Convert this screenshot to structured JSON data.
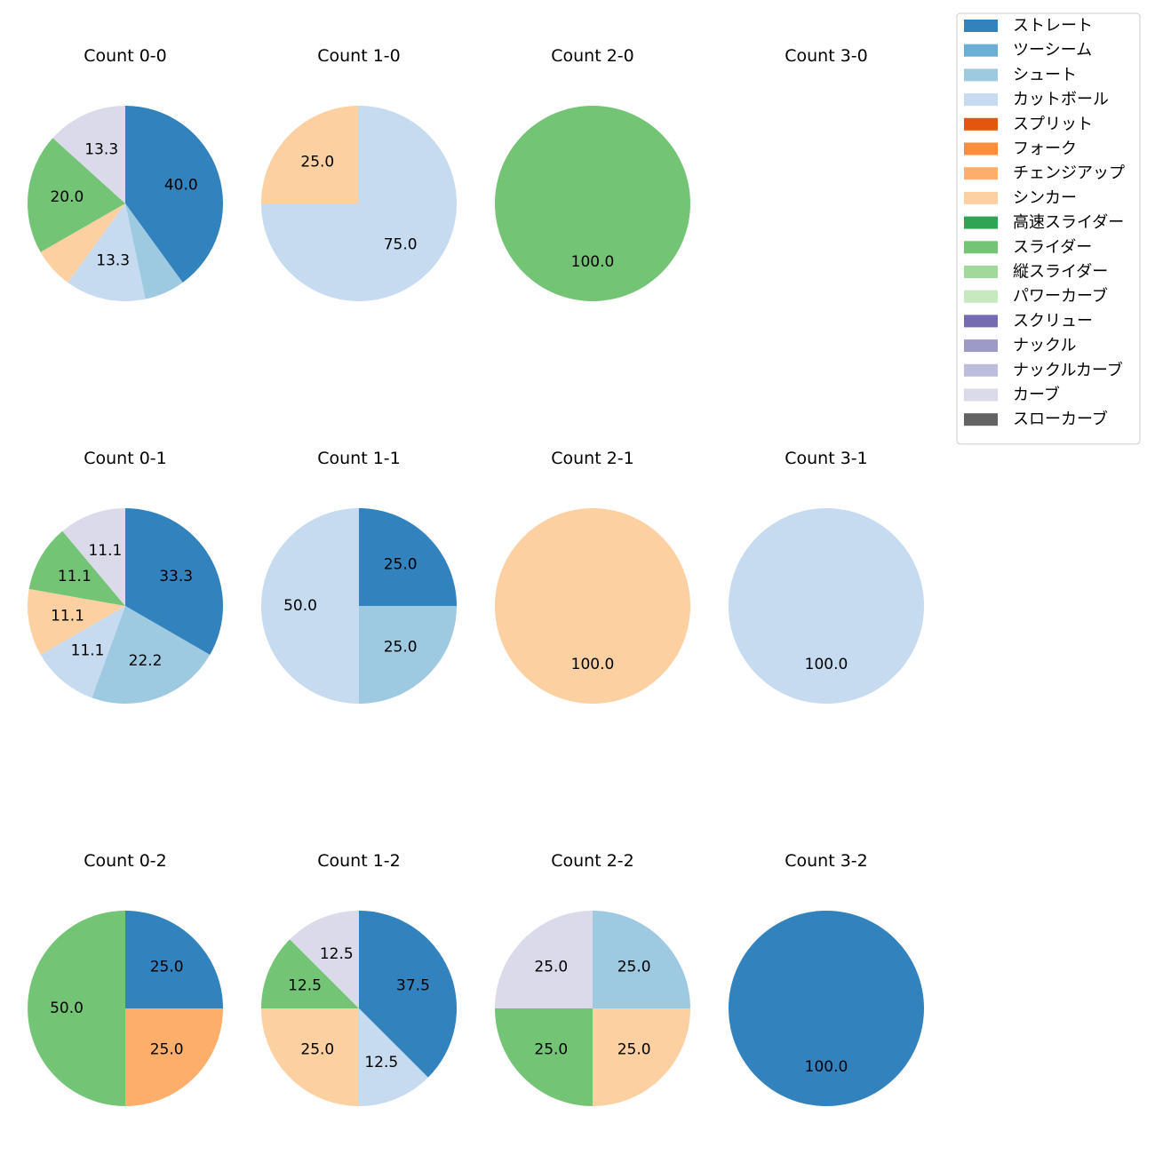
{
  "legend": {
    "items": [
      {
        "label": "ストレート",
        "color": "#3182bd"
      },
      {
        "label": "ツーシーム",
        "color": "#6baed6"
      },
      {
        "label": "シュート",
        "color": "#9ecae1"
      },
      {
        "label": "カットボール",
        "color": "#c6dbef"
      },
      {
        "label": "スプリット",
        "color": "#e6550d"
      },
      {
        "label": "フォーク",
        "color": "#fd8d3c"
      },
      {
        "label": "チェンジアップ",
        "color": "#fdae6b"
      },
      {
        "label": "シンカー",
        "color": "#fdd0a2"
      },
      {
        "label": "高速スライダー",
        "color": "#31a354"
      },
      {
        "label": "スライダー",
        "color": "#74c476"
      },
      {
        "label": "縦スライダー",
        "color": "#a1d99b"
      },
      {
        "label": "パワーカーブ",
        "color": "#c7e9c0"
      },
      {
        "label": "スクリュー",
        "color": "#756bb1"
      },
      {
        "label": "ナックル",
        "color": "#9e9ac8"
      },
      {
        "label": "ナックルカーブ",
        "color": "#bcbddc"
      },
      {
        "label": "カーブ",
        "color": "#dadaeb"
      },
      {
        "label": "スローカーブ",
        "color": "#636363"
      }
    ]
  },
  "chart_data": [
    {
      "type": "pie",
      "title": "Count 0-0",
      "slices": [
        {
          "category": "ストレート",
          "value": 40.0,
          "label": "40.0"
        },
        {
          "category": "シュート",
          "value": 6.7,
          "label": ""
        },
        {
          "category": "カットボール",
          "value": 13.3,
          "label": "13.3"
        },
        {
          "category": "シンカー",
          "value": 6.7,
          "label": ""
        },
        {
          "category": "スライダー",
          "value": 20.0,
          "label": "20.0"
        },
        {
          "category": "カーブ",
          "value": 13.3,
          "label": "13.3"
        }
      ]
    },
    {
      "type": "pie",
      "title": "Count 1-0",
      "slices": [
        {
          "category": "カットボール",
          "value": 75.0,
          "label": "75.0"
        },
        {
          "category": "シンカー",
          "value": 25.0,
          "label": "25.0"
        }
      ]
    },
    {
      "type": "pie",
      "title": "Count 2-0",
      "slices": [
        {
          "category": "スライダー",
          "value": 100.0,
          "label": "100.0"
        }
      ]
    },
    {
      "type": "pie",
      "title": "Count 3-0",
      "slices": []
    },
    {
      "type": "pie",
      "title": "Count 0-1",
      "slices": [
        {
          "category": "ストレート",
          "value": 33.3,
          "label": "33.3"
        },
        {
          "category": "シュート",
          "value": 22.2,
          "label": "22.2"
        },
        {
          "category": "カットボール",
          "value": 11.1,
          "label": "11.1"
        },
        {
          "category": "シンカー",
          "value": 11.1,
          "label": "11.1"
        },
        {
          "category": "スライダー",
          "value": 11.1,
          "label": "11.1"
        },
        {
          "category": "カーブ",
          "value": 11.1,
          "label": "11.1"
        }
      ]
    },
    {
      "type": "pie",
      "title": "Count 1-1",
      "slices": [
        {
          "category": "ストレート",
          "value": 25.0,
          "label": "25.0"
        },
        {
          "category": "シュート",
          "value": 25.0,
          "label": "25.0"
        },
        {
          "category": "カットボール",
          "value": 50.0,
          "label": "50.0"
        }
      ]
    },
    {
      "type": "pie",
      "title": "Count 2-1",
      "slices": [
        {
          "category": "シンカー",
          "value": 100.0,
          "label": "100.0"
        }
      ]
    },
    {
      "type": "pie",
      "title": "Count 3-1",
      "slices": [
        {
          "category": "カットボール",
          "value": 100.0,
          "label": "100.0"
        }
      ]
    },
    {
      "type": "pie",
      "title": "Count 0-2",
      "slices": [
        {
          "category": "ストレート",
          "value": 25.0,
          "label": "25.0"
        },
        {
          "category": "チェンジアップ",
          "value": 25.0,
          "label": "25.0"
        },
        {
          "category": "スライダー",
          "value": 50.0,
          "label": "50.0"
        }
      ]
    },
    {
      "type": "pie",
      "title": "Count 1-2",
      "slices": [
        {
          "category": "ストレート",
          "value": 37.5,
          "label": "37.5"
        },
        {
          "category": "カットボール",
          "value": 12.5,
          "label": "12.5"
        },
        {
          "category": "シンカー",
          "value": 25.0,
          "label": "25.0"
        },
        {
          "category": "スライダー",
          "value": 12.5,
          "label": "12.5"
        },
        {
          "category": "カーブ",
          "value": 12.5,
          "label": "12.5"
        }
      ]
    },
    {
      "type": "pie",
      "title": "Count 2-2",
      "slices": [
        {
          "category": "シュート",
          "value": 25.0,
          "label": "25.0"
        },
        {
          "category": "シンカー",
          "value": 25.0,
          "label": "25.0"
        },
        {
          "category": "スライダー",
          "value": 25.0,
          "label": "25.0"
        },
        {
          "category": "カーブ",
          "value": 25.0,
          "label": "25.0"
        }
      ]
    },
    {
      "type": "pie",
      "title": "Count 3-2",
      "slices": [
        {
          "category": "ストレート",
          "value": 100.0,
          "label": "100.0"
        }
      ]
    }
  ]
}
